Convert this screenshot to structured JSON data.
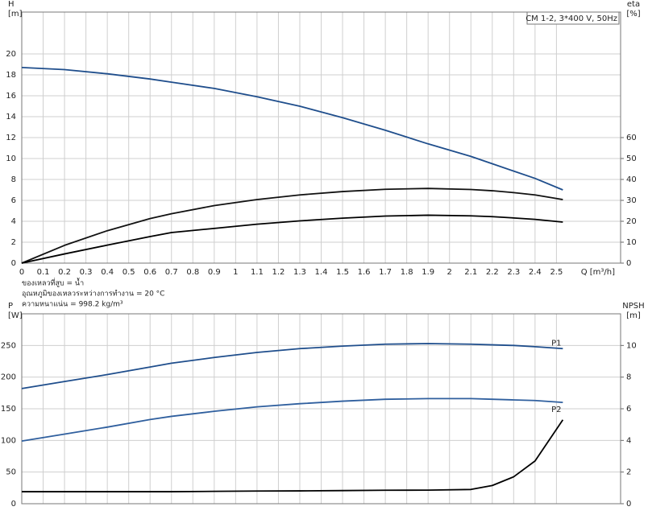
{
  "chart_data": [
    {
      "type": "line",
      "title": "CM 1-2, 3*400 V, 50Hz",
      "ylabel": [
        "H",
        "[m]"
      ],
      "y2label": [
        "eta",
        "[%]"
      ],
      "xlabel": "Q [m³/h]",
      "notes": [
        "ของเหลวที่สูบ = น้ำ",
        "อุณหภูมิของเหลวระหว่างการทำงาน = 20 °C",
        "ความหนาแน่น = 998.2 kg/m³"
      ],
      "x": [
        0,
        0.2,
        0.4,
        0.6,
        0.7,
        0.9,
        1.1,
        1.3,
        1.5,
        1.7,
        1.9,
        2.1,
        2.2,
        2.3,
        2.4,
        2.53
      ],
      "xlim": [
        0,
        2.8
      ],
      "xticks": [
        0,
        0.1,
        0.2,
        0.3,
        0.4,
        0.5,
        0.6,
        0.7,
        0.8,
        0.9,
        1,
        1.1,
        1.2,
        1.3,
        1.4,
        1.5,
        1.6,
        1.7,
        1.8,
        1.9,
        2,
        2.1,
        2.2,
        2.3,
        2.4,
        2.5
      ],
      "ylim": [
        0,
        24
      ],
      "yticks": [
        0,
        2,
        4,
        6,
        8,
        10,
        12,
        14,
        16,
        18,
        20
      ],
      "y2lim": [
        0,
        120
      ],
      "y2ticks": [
        0,
        10,
        20,
        30,
        40,
        50,
        60
      ],
      "grid": true,
      "series": [
        {
          "color": "#1f4e8c",
          "values": [
            18.7,
            18.5,
            18.1,
            17.6,
            17.3,
            16.7,
            15.9,
            15.0,
            13.9,
            12.7,
            11.4,
            10.2,
            9.5,
            8.8,
            8.1,
            7.0
          ]
        },
        {
          "color": "#111111",
          "axis": "y2",
          "values": [
            0,
            8.5,
            15.5,
            21.3,
            23.6,
            27.5,
            30.4,
            32.6,
            34.2,
            35.3,
            35.7,
            35.2,
            34.6,
            33.7,
            32.6,
            30.4
          ]
        },
        {
          "color": "#000000",
          "axis": "y2",
          "values": [
            0,
            4.4,
            8.6,
            12.7,
            14.6,
            16.6,
            18.6,
            20.2,
            21.5,
            22.5,
            22.9,
            22.6,
            22.2,
            21.6,
            20.9,
            19.6
          ]
        }
      ]
    },
    {
      "type": "line",
      "ylabel": [
        "P",
        "[W]"
      ],
      "y2label": [
        "NPSH",
        "[m]"
      ],
      "x": [
        0,
        0.2,
        0.4,
        0.6,
        0.7,
        0.9,
        1.1,
        1.3,
        1.5,
        1.7,
        1.9,
        2.1,
        2.2,
        2.3,
        2.4,
        2.53
      ],
      "xlim": [
        0,
        2.8
      ],
      "ylim": [
        0,
        300
      ],
      "yticks": [
        0,
        50,
        100,
        150,
        200,
        250
      ],
      "y2lim": [
        0,
        12
      ],
      "y2ticks": [
        0,
        2,
        4,
        6,
        8,
        10
      ],
      "grid": true,
      "series": [
        {
          "name": "P1",
          "color": "#1f4e8c",
          "values": [
            182,
            193,
            204,
            216,
            222,
            231,
            239,
            245,
            249,
            252,
            253,
            252,
            251,
            250,
            248,
            245
          ]
        },
        {
          "name": "P2",
          "color": "#2f5f9e",
          "values": [
            99,
            110,
            121,
            133,
            138,
            146,
            153,
            158,
            162,
            165,
            166,
            166,
            165,
            164,
            163,
            160
          ]
        },
        {
          "color": "#000000",
          "axis": "y2",
          "values": [
            0.76,
            0.76,
            0.76,
            0.76,
            0.76,
            0.78,
            0.8,
            0.81,
            0.83,
            0.85,
            0.86,
            0.9,
            1.15,
            1.7,
            2.7,
            5.3
          ]
        }
      ]
    }
  ]
}
